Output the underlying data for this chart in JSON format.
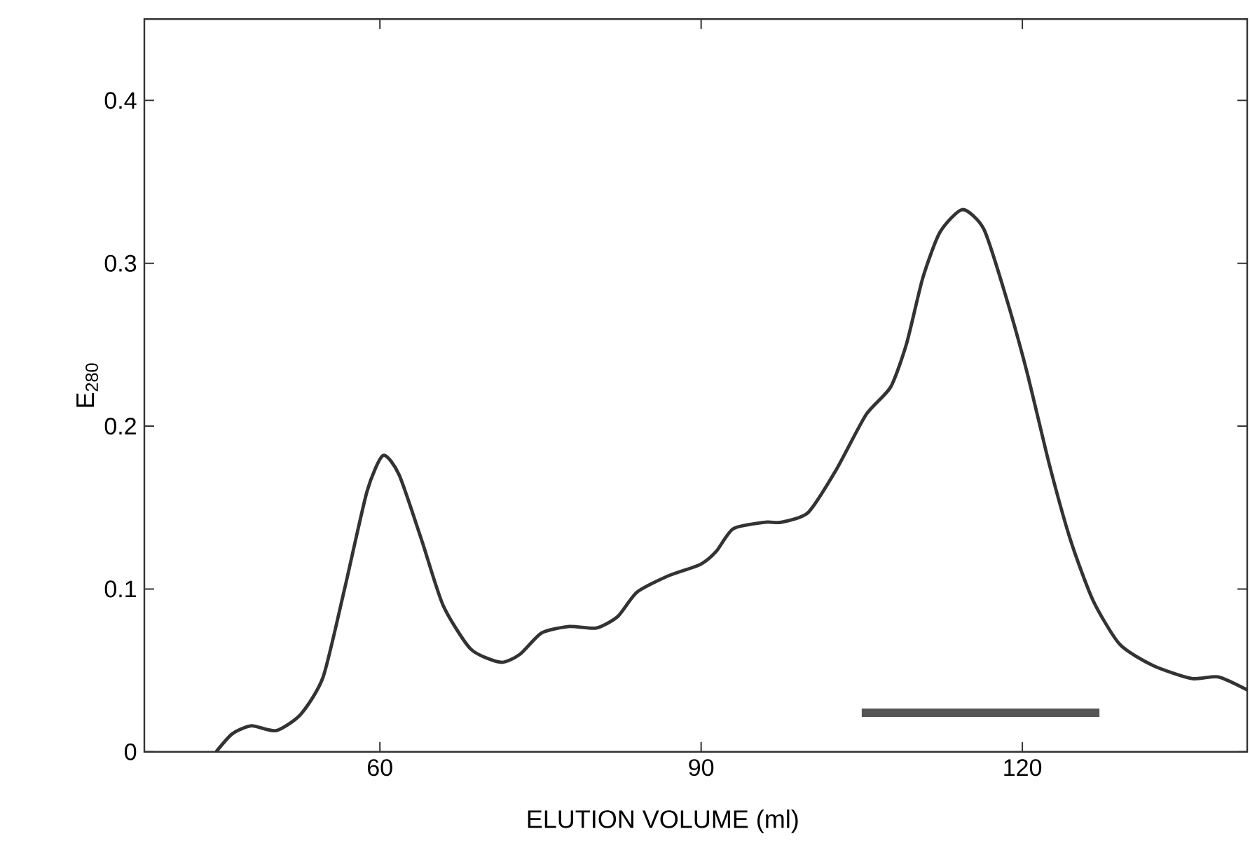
{
  "chart_data": {
    "type": "line",
    "xlabel": "ELUTION  VOLUME  (ml)",
    "ylabel": "E$_{280}$",
    "xlim": [
      38,
      141
    ],
    "ylim": [
      0,
      0.45
    ],
    "xticks": [
      60,
      90,
      120
    ],
    "yticks": [
      0,
      0.1,
      0.2,
      0.3,
      0.4
    ],
    "marker": "none",
    "line_style": "solid",
    "series": [
      {
        "color": "#333333",
        "x": [
          44.7,
          46.2,
          48.0,
          50.3,
          52.6,
          54.7,
          56.7,
          58.8,
          60.3,
          61.8,
          63.9,
          65.9,
          68.5,
          71.3,
          73.1,
          75.1,
          77.7,
          80.2,
          82.2,
          84.0,
          86.9,
          89.9,
          91.4,
          93.0,
          96.0,
          97.5,
          100.0,
          102.6,
          105.4,
          107.7,
          109.2,
          110.7,
          112.3,
          114.4,
          116.4,
          118.4,
          120.4,
          122.5,
          124.5,
          126.6,
          129.1,
          132.2,
          135.8,
          138.3,
          141.0
        ],
        "values": [
          0,
          0.011,
          0.016,
          0.013,
          0.023,
          0.046,
          0.1,
          0.16,
          0.182,
          0.17,
          0.13,
          0.09,
          0.063,
          0.055,
          0.06,
          0.073,
          0.077,
          0.076,
          0.083,
          0.098,
          0.108,
          0.115,
          0.123,
          0.137,
          0.141,
          0.141,
          0.147,
          0.173,
          0.207,
          0.224,
          0.251,
          0.291,
          0.319,
          0.333,
          0.321,
          0.281,
          0.234,
          0.177,
          0.13,
          0.093,
          0.066,
          0.053,
          0.045,
          0.046,
          0.038
        ]
      },
      {
        "color": "#555555",
        "x": [
          105.0,
          127.2
        ],
        "values": [
          0.024,
          0.024
        ]
      }
    ]
  }
}
